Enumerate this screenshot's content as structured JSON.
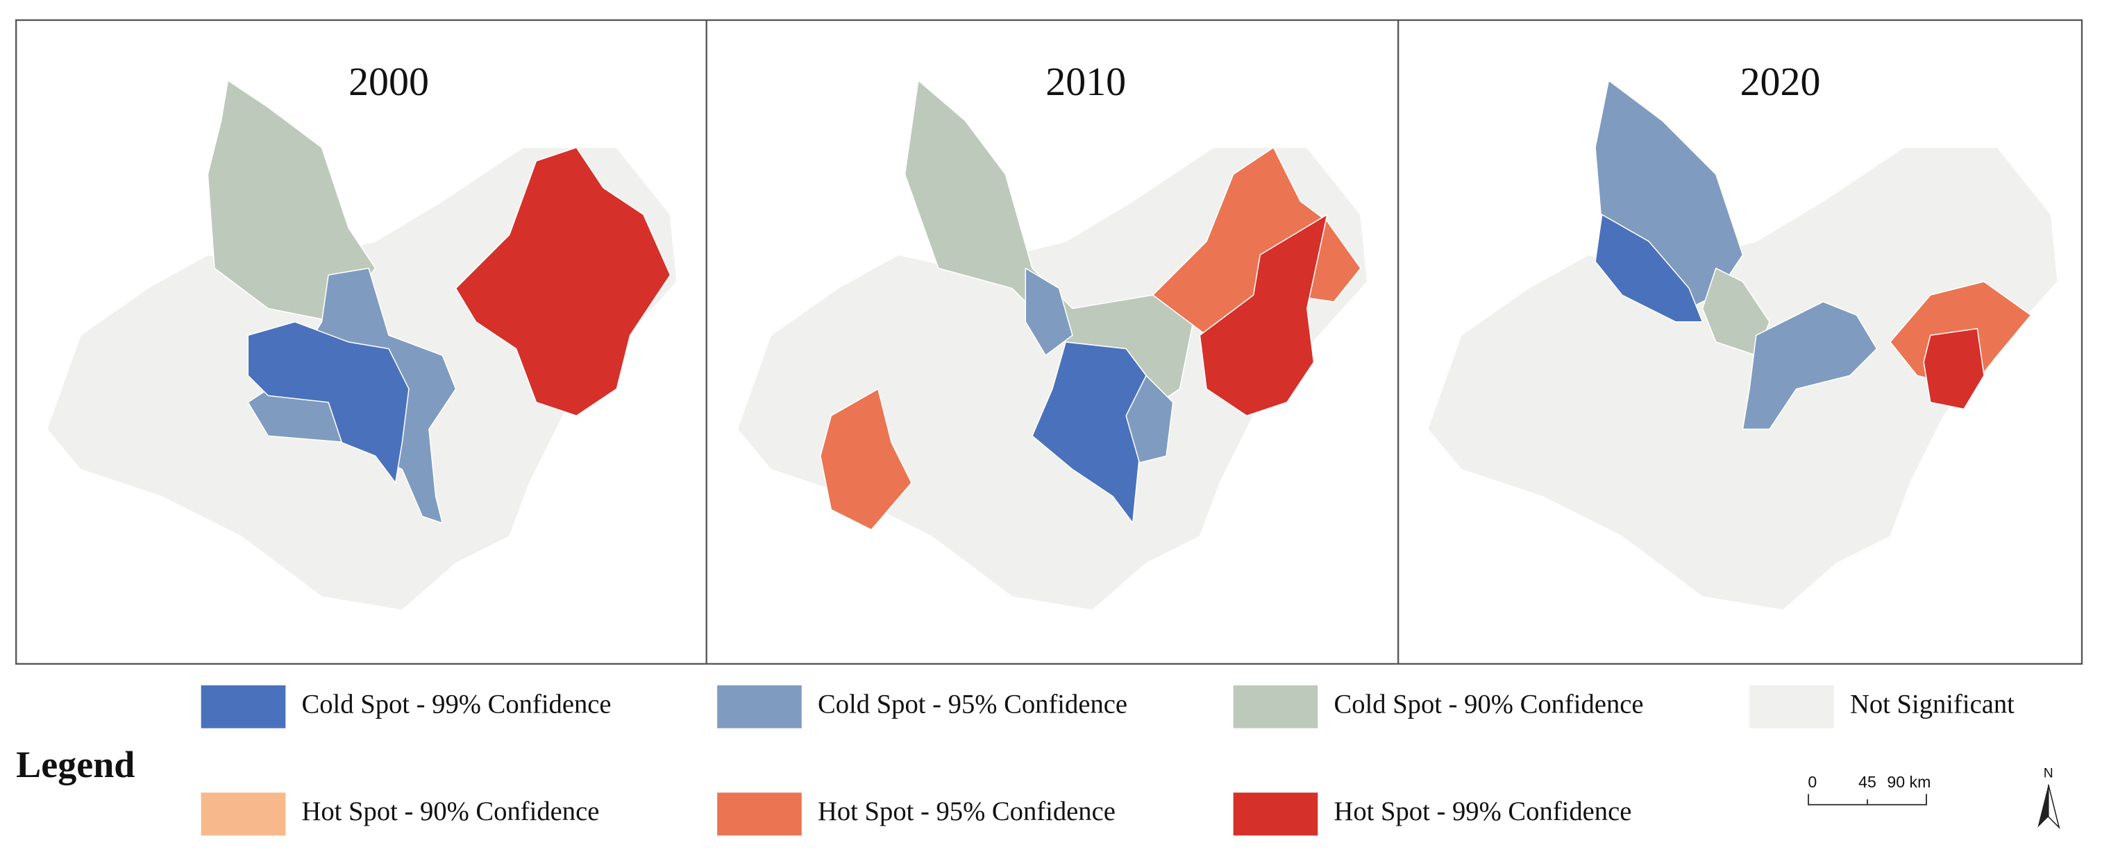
{
  "panels": [
    {
      "title": "2000"
    },
    {
      "title": "2010"
    },
    {
      "title": "2020"
    }
  ],
  "legend": {
    "title": "Legend",
    "items": [
      {
        "label": "Cold Spot - 99% Confidence",
        "color": "#4a71bc"
      },
      {
        "label": "Cold Spot - 95% Confidence",
        "color": "#7f9bbf"
      },
      {
        "label": "Cold Spot - 90% Confidence",
        "color": "#bdcabb"
      },
      {
        "label": "Not Significant",
        "color": "#f0f1ee"
      },
      {
        "label": "Hot Spot - 90% Confidence",
        "color": "#f7b98c"
      },
      {
        "label": "Hot Spot - 95% Confidence",
        "color": "#eb7552"
      },
      {
        "label": "Hot Spot - 99% Confidence",
        "color": "#d6302a"
      }
    ]
  },
  "scale_bar": {
    "labels": [
      "0",
      "45",
      "90 km"
    ]
  },
  "north_arrow": {
    "label": "N"
  }
}
